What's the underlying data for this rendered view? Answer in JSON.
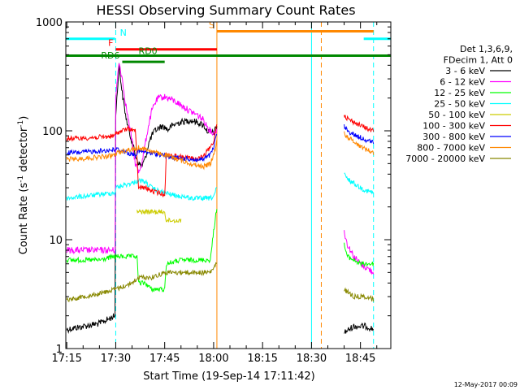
{
  "chart_data": {
    "type": "line",
    "title": "HESSI Observing Summary Count Rates",
    "xlabel": "Start Time (19-Sep-14 17:11:42)",
    "ylabel": "Count Rate (s⁻¹ detector⁻¹)",
    "ylabel_main": "Count Rate (s",
    "ylabel_sup1": "-1",
    "ylabel_mid": " detector",
    "ylabel_sup2": "-1",
    "ylabel_end": ")",
    "y_scale": "log",
    "ylim": [
      1,
      1000
    ],
    "xlim_minutes": [
      -0.3,
      99.3
    ],
    "x_ticks": [
      {
        "label": "17:15",
        "minutes": 0
      },
      {
        "label": "17:30",
        "minutes": 15
      },
      {
        "label": "17:45",
        "minutes": 30
      },
      {
        "label": "18:00",
        "minutes": 45
      },
      {
        "label": "18:15",
        "minutes": 60
      },
      {
        "label": "18:30",
        "minutes": 75
      },
      {
        "label": "18:45",
        "minutes": 90
      }
    ],
    "y_ticks": [
      {
        "label": "1",
        "value": 1
      },
      {
        "label": "10",
        "value": 10
      },
      {
        "label": "100",
        "value": 100
      },
      {
        "label": "1000",
        "value": 1000
      }
    ],
    "legend": {
      "placement": "right",
      "header": [
        "Det 1,3,6,9,",
        "FDecim 1, Att 0"
      ]
    },
    "series": [
      {
        "name": "3 - 6 keV",
        "color": "#000000",
        "points": [
          [
            0,
            1.5
          ],
          [
            10,
            1.7
          ],
          [
            14.8,
            2
          ],
          [
            15,
            140
          ],
          [
            16,
            400
          ],
          [
            17,
            220
          ],
          [
            18,
            140
          ],
          [
            19,
            100
          ],
          [
            20,
            80
          ],
          [
            21,
            60
          ],
          [
            22,
            50
          ],
          [
            23,
            48
          ],
          [
            24,
            55
          ],
          [
            25,
            75
          ],
          [
            26,
            90
          ],
          [
            27,
            100
          ],
          [
            28,
            105
          ],
          [
            29,
            110
          ],
          [
            30,
            108
          ],
          [
            31,
            102
          ],
          [
            32,
            110
          ],
          [
            34,
            118
          ],
          [
            36,
            122
          ],
          [
            38,
            125
          ],
          [
            40,
            120
          ],
          [
            42,
            112
          ],
          [
            43,
            100
          ],
          [
            45,
            95
          ],
          [
            46,
            110
          ]
        ],
        "tail": [
          [
            85,
            1.4
          ],
          [
            88,
            1.6
          ],
          [
            92,
            1.6
          ],
          [
            94,
            1.5
          ]
        ]
      },
      {
        "name": "6 - 12 keV",
        "color": "#ff00ff",
        "points": [
          [
            0,
            8
          ],
          [
            5,
            8
          ],
          [
            10,
            8
          ],
          [
            14.8,
            8
          ],
          [
            15,
            200
          ],
          [
            16,
            430
          ],
          [
            17,
            300
          ],
          [
            18,
            180
          ],
          [
            19,
            120
          ],
          [
            20,
            80
          ],
          [
            21,
            50
          ],
          [
            22,
            42
          ],
          [
            23,
            50
          ],
          [
            24,
            75
          ],
          [
            25,
            110
          ],
          [
            26,
            150
          ],
          [
            27,
            180
          ],
          [
            28,
            200
          ],
          [
            30,
            205
          ],
          [
            32,
            195
          ],
          [
            34,
            180
          ],
          [
            36,
            165
          ],
          [
            38,
            150
          ],
          [
            40,
            140
          ],
          [
            42,
            125
          ],
          [
            43,
            110
          ],
          [
            44,
            100
          ],
          [
            45,
            95
          ],
          [
            46,
            100
          ]
        ],
        "tail": [
          [
            85,
            12
          ],
          [
            86,
            9
          ],
          [
            88,
            7
          ],
          [
            90,
            6
          ],
          [
            92,
            5.5
          ],
          [
            94,
            5
          ]
        ]
      },
      {
        "name": "12 - 25 keV",
        "color": "#00ff00",
        "points": [
          [
            0,
            6.5
          ],
          [
            5,
            6.5
          ],
          [
            10,
            6.5
          ],
          [
            14.8,
            7
          ],
          [
            15,
            7
          ],
          [
            20,
            7
          ],
          [
            21.5,
            7
          ],
          [
            22,
            4
          ],
          [
            24,
            4
          ],
          [
            26,
            3.5
          ],
          [
            28,
            3.5
          ],
          [
            30,
            3.5
          ],
          [
            30.5,
            6
          ],
          [
            35,
            6.5
          ],
          [
            40,
            6.5
          ],
          [
            44,
            6.5
          ],
          [
            45,
            12
          ],
          [
            46,
            20
          ]
        ],
        "tail": [
          [
            85,
            9
          ],
          [
            86,
            7
          ],
          [
            88,
            6.5
          ],
          [
            90,
            6
          ],
          [
            92,
            6
          ],
          [
            94,
            6
          ]
        ]
      },
      {
        "name": "25 - 50 keV",
        "color": "#00ffff",
        "points": [
          [
            0,
            24
          ],
          [
            5,
            25
          ],
          [
            10,
            26
          ],
          [
            14.8,
            27
          ],
          [
            15,
            30
          ],
          [
            18,
            32
          ],
          [
            20,
            33
          ],
          [
            22,
            35
          ],
          [
            24,
            34
          ],
          [
            26,
            30
          ],
          [
            28,
            28
          ],
          [
            30,
            27
          ],
          [
            32,
            26
          ],
          [
            34,
            25
          ],
          [
            36,
            25
          ],
          [
            38,
            24
          ],
          [
            40,
            24
          ],
          [
            42,
            24
          ],
          [
            44,
            24
          ],
          [
            45,
            25
          ],
          [
            46,
            30
          ]
        ],
        "tail": [
          [
            85,
            40
          ],
          [
            86,
            36
          ],
          [
            88,
            33
          ],
          [
            90,
            30
          ],
          [
            92,
            28
          ],
          [
            94,
            27
          ]
        ]
      },
      {
        "name": "50 - 100 keV",
        "color": "#cccc00",
        "points": [
          [
            21.5,
            18
          ],
          [
            22,
            18
          ],
          [
            26,
            18
          ],
          [
            30,
            18
          ],
          [
            30.5,
            15
          ],
          [
            35,
            15
          ]
        ],
        "tail": []
      },
      {
        "name": "100 - 300 keV",
        "color": "#ff0000",
        "points": [
          [
            0,
            85
          ],
          [
            3,
            85
          ],
          [
            6,
            86
          ],
          [
            9,
            87
          ],
          [
            12,
            88
          ],
          [
            14.8,
            90
          ],
          [
            15,
            95
          ],
          [
            17,
            100
          ],
          [
            19,
            105
          ],
          [
            21,
            100
          ],
          [
            22,
            30
          ],
          [
            24,
            30
          ],
          [
            26,
            28
          ],
          [
            28,
            27
          ],
          [
            30,
            26
          ],
          [
            30.5,
            60
          ],
          [
            32,
            60
          ],
          [
            34,
            58
          ],
          [
            36,
            57
          ],
          [
            38,
            56
          ],
          [
            40,
            55
          ],
          [
            42,
            58
          ],
          [
            43,
            65
          ],
          [
            44,
            70
          ],
          [
            45,
            80
          ],
          [
            46,
            120
          ]
        ],
        "tail": [
          [
            85,
            140
          ],
          [
            86,
            130
          ],
          [
            88,
            120
          ],
          [
            90,
            112
          ],
          [
            92,
            105
          ],
          [
            94,
            100
          ]
        ]
      },
      {
        "name": "300 - 800 keV",
        "color": "#0000ff",
        "points": [
          [
            0,
            63
          ],
          [
            3,
            63
          ],
          [
            6,
            64
          ],
          [
            9,
            65
          ],
          [
            12,
            66
          ],
          [
            14.8,
            67
          ],
          [
            15,
            68
          ],
          [
            17,
            66
          ],
          [
            19,
            62
          ],
          [
            21,
            60
          ],
          [
            22,
            65
          ],
          [
            24,
            64
          ],
          [
            26,
            62
          ],
          [
            28,
            61
          ],
          [
            30,
            60
          ],
          [
            30.5,
            58
          ],
          [
            32,
            57
          ],
          [
            34,
            56
          ],
          [
            36,
            55
          ],
          [
            38,
            55
          ],
          [
            40,
            54
          ],
          [
            42,
            55
          ],
          [
            44,
            60
          ],
          [
            45,
            70
          ],
          [
            46,
            95
          ]
        ],
        "tail": [
          [
            85,
            110
          ],
          [
            86,
            100
          ],
          [
            88,
            92
          ],
          [
            90,
            87
          ],
          [
            92,
            82
          ],
          [
            94,
            78
          ]
        ]
      },
      {
        "name": "800 - 7000 keV",
        "color": "#ff8800",
        "points": [
          [
            0,
            55
          ],
          [
            3,
            55
          ],
          [
            6,
            56
          ],
          [
            9,
            57
          ],
          [
            12,
            58
          ],
          [
            14.8,
            60
          ],
          [
            15,
            62
          ],
          [
            17,
            65
          ],
          [
            19,
            67
          ],
          [
            21,
            68
          ],
          [
            22,
            70
          ],
          [
            24,
            68
          ],
          [
            26,
            65
          ],
          [
            28,
            62
          ],
          [
            30,
            60
          ],
          [
            32,
            57
          ],
          [
            34,
            55
          ],
          [
            36,
            52
          ],
          [
            38,
            50
          ],
          [
            40,
            48
          ],
          [
            42,
            47
          ],
          [
            44,
            50
          ],
          [
            45,
            60
          ],
          [
            46,
            80
          ]
        ],
        "tail": [
          [
            85,
            95
          ],
          [
            86,
            88
          ],
          [
            88,
            80
          ],
          [
            90,
            72
          ],
          [
            92,
            67
          ],
          [
            94,
            63
          ]
        ]
      },
      {
        "name": "7000 - 20000 keV",
        "color": "#888800",
        "points": [
          [
            0,
            2.8
          ],
          [
            5,
            3
          ],
          [
            10,
            3.2
          ],
          [
            14.8,
            3.5
          ],
          [
            15,
            3.5
          ],
          [
            20,
            4
          ],
          [
            22,
            4.5
          ],
          [
            26,
            4.5
          ],
          [
            30,
            5
          ],
          [
            35,
            5
          ],
          [
            40,
            5
          ],
          [
            44,
            5
          ],
          [
            45,
            5.5
          ],
          [
            46,
            6
          ]
        ],
        "tail": [
          [
            85,
            3.5
          ],
          [
            88,
            3
          ],
          [
            92,
            3
          ],
          [
            94,
            2.8
          ]
        ]
      }
    ],
    "status_bars": [
      {
        "label": "N",
        "color": "#00ffff",
        "level": 700,
        "segments": [
          [
            -0.3,
            14.8
          ],
          [
            91,
            99.3
          ]
        ]
      },
      {
        "label": "S",
        "color": "#ff8800",
        "level": 820,
        "segments": [
          [
            46,
            94
          ]
        ]
      },
      {
        "label": "F",
        "color": "#ff0000",
        "level": 560,
        "segments": [
          [
            15,
            46
          ]
        ]
      },
      {
        "label": "RD0",
        "color": "#008800",
        "level": 490,
        "segments": [
          [
            -0.3,
            99.3
          ]
        ]
      },
      {
        "label": "RD6",
        "color": "#008800",
        "level": 430,
        "segments": [
          [
            17,
            30
          ]
        ]
      }
    ],
    "vlines": [
      {
        "minutes": 15,
        "color": "#00ffff",
        "dash": true
      },
      {
        "minutes": 46,
        "color": "#ff8800",
        "dash": false
      },
      {
        "minutes": 75,
        "color": "#00ffff",
        "dash": false
      },
      {
        "minutes": 78,
        "color": "#ff8800",
        "dash": true
      },
      {
        "minutes": 94,
        "color": "#00ffff",
        "dash": true
      }
    ],
    "footer_date": "12-May-2017 00:09"
  }
}
